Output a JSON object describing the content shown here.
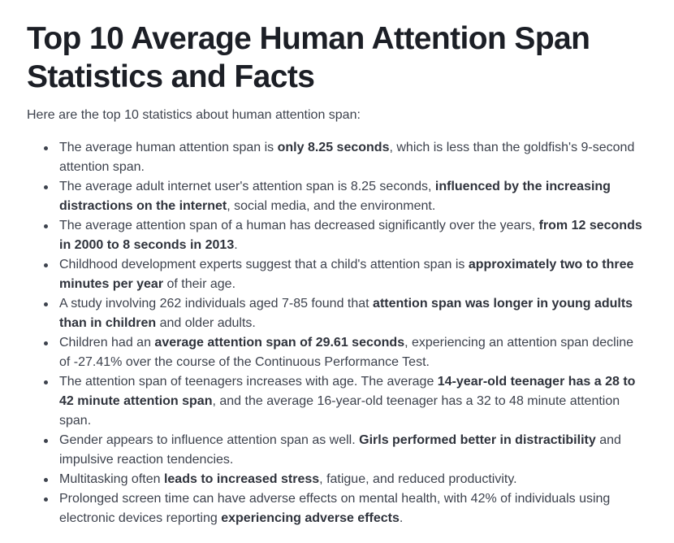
{
  "article": {
    "title": "Top 10 Average Human Attention Span Statistics and Facts",
    "intro": "Here are the top 10 statistics about human attention span:",
    "facts": [
      {
        "a": "The average human attention span is ",
        "b": "only 8.25 seconds",
        "c": ", which is less than the goldfish's 9-second attention span."
      },
      {
        "a": "The average adult internet user's attention span is 8.25 seconds, ",
        "b": "influenced by the increasing distractions on the internet",
        "c": ", social media, and the environment."
      },
      {
        "a": "The average attention span of a human has decreased significantly over the years, ",
        "b": "from 12 seconds in 2000 to 8 seconds in 2013",
        "c": "."
      },
      {
        "a": "Childhood development experts suggest that a child's attention span is ",
        "b": "approximately two to three minutes per year",
        "c": " of their age."
      },
      {
        "a": "A study involving 262 individuals aged 7-85 found that ",
        "b": "attention span was longer in young adults than in children",
        "c": " and older adults."
      },
      {
        "a": "Children had an ",
        "b": "average attention span of 29.61 seconds",
        "c": ", experiencing an attention span decline of -27.41% over the course of the Continuous Performance Test."
      },
      {
        "a": "The attention span of teenagers increases with age. The average ",
        "b": "14-year-old teenager has a 28 to 42 minute attention span",
        "c": ", and the average 16-year-old teenager has a 32 to 48 minute attention span."
      },
      {
        "a": "Gender appears to influence attention span as well. ",
        "b": "Girls performed better in distractibility",
        "c": " and impulsive reaction tendencies."
      },
      {
        "a": "Multitasking often ",
        "b": "leads to increased stress",
        "c": ", fatigue, and reduced productivity."
      },
      {
        "a": "Prolonged screen time can have adverse effects on mental health, with 42% of individuals using electronic devices reporting ",
        "b": "experiencing adverse effects",
        "c": "."
      }
    ]
  }
}
